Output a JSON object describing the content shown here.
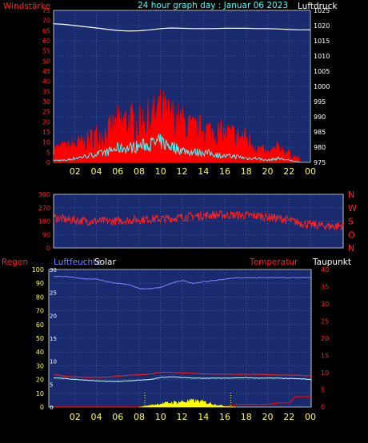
{
  "title": "24 hour graph day : Januar 06 2023",
  "colors": {
    "plot_bg": "#1a2a6e",
    "grid": "#5a6fb8",
    "frame": "#c0c0c0",
    "red_axis": "#ff2020",
    "yellow_axis": "#ffff40",
    "cyan_title": "#40ffff",
    "white_label": "#ffffff",
    "pressure_line": "#ffffff",
    "wind_gust": "#ff0000",
    "wind_avg": "#40ffff",
    "wind_dir": "#ff2020",
    "humidity": "#8080ff",
    "temperature": "#ff2020",
    "dewpoint": "#c0ffff",
    "rain": "#ff0000",
    "solar": "#ffff00"
  },
  "chart_data": [
    {
      "type": "line",
      "ylabel_left": "Windstärke",
      "ylabel_right": "Luftdruck",
      "yticks_left": [
        "0",
        "5",
        "10",
        "15",
        "20",
        "25",
        "30",
        "35",
        "40",
        "45",
        "50",
        "55",
        "60",
        "65",
        "70",
        "75"
      ],
      "yticks_right": [
        "975",
        "980",
        "985",
        "990",
        "995",
        "1000",
        "1005",
        "1010",
        "1015",
        "1020",
        "1025"
      ],
      "ylim_left": [
        0,
        75
      ],
      "ylim_right": [
        975,
        1025
      ],
      "xticks": [
        "02",
        "04",
        "06",
        "08",
        "10",
        "12",
        "14",
        "16",
        "18",
        "20",
        "22",
        "00"
      ],
      "grid": true,
      "series": [
        {
          "name": "Luftdruck",
          "axis": "right",
          "x": [
            0,
            1,
            2,
            3,
            4,
            5,
            6,
            7,
            8,
            9,
            10,
            11,
            12,
            13,
            14,
            15,
            16,
            17,
            18,
            19,
            20,
            21,
            22,
            23,
            24
          ],
          "values": [
            1020.6,
            1020.4,
            1020.0,
            1019.6,
            1019.2,
            1018.8,
            1018.4,
            1018.2,
            1018.3,
            1018.6,
            1019.0,
            1019.2,
            1019.1,
            1019.0,
            1019.0,
            1019.0,
            1019.1,
            1019.1,
            1019.1,
            1019.0,
            1019.0,
            1018.9,
            1018.7,
            1018.6,
            1018.6
          ]
        },
        {
          "name": "Windböen",
          "axis": "left",
          "x": [
            0,
            1,
            2,
            3,
            4,
            5,
            6,
            7,
            8,
            9,
            10,
            11,
            12,
            13,
            14,
            15,
            16,
            17,
            18,
            19,
            20,
            21,
            22,
            23,
            24
          ],
          "values": [
            9,
            10,
            12,
            14,
            18,
            20,
            26,
            28,
            26,
            30,
            34,
            30,
            26,
            22,
            22,
            20,
            19,
            18,
            16,
            10,
            6,
            10,
            6,
            2,
            0
          ]
        },
        {
          "name": "Windmittel",
          "axis": "left",
          "x": [
            0,
            1,
            2,
            3,
            4,
            5,
            6,
            7,
            8,
            9,
            10,
            11,
            12,
            13,
            14,
            15,
            16,
            17,
            18,
            19,
            20,
            21,
            22,
            23,
            24
          ],
          "values": [
            1,
            1,
            2,
            3,
            4,
            5,
            7,
            7,
            8,
            9,
            10,
            8,
            6,
            5,
            5,
            4,
            3,
            3,
            2,
            2,
            1,
            2,
            1,
            0,
            0
          ]
        }
      ]
    },
    {
      "type": "line",
      "ylabel_right": [
        "N",
        "W",
        "S",
        "O",
        "N"
      ],
      "yticks_left": [
        "0",
        "90",
        "180",
        "270",
        "360"
      ],
      "ylim": [
        0,
        360
      ],
      "xticks": [
        "02",
        "04",
        "06",
        "08",
        "10",
        "12",
        "14",
        "16",
        "18",
        "20",
        "22",
        "00"
      ],
      "grid": true,
      "series": [
        {
          "name": "Windrichtung",
          "x": [
            0,
            1,
            2,
            3,
            4,
            5,
            6,
            7,
            8,
            9,
            10,
            11,
            12,
            13,
            14,
            15,
            16,
            17,
            18,
            19,
            20,
            21,
            22,
            23,
            24
          ],
          "values": [
            205,
            190,
            185,
            180,
            180,
            180,
            185,
            190,
            195,
            195,
            200,
            210,
            215,
            220,
            222,
            220,
            218,
            215,
            205,
            195,
            175,
            160,
            150,
            145,
            150
          ]
        }
      ]
    },
    {
      "type": "line",
      "ylabel_left": "Regen",
      "ylabel_humidity": "Luftfeuchte",
      "ylabel_solar": "Solar",
      "ylabel_temp": "Temperatur",
      "ylabel_dew": "Taupunkt",
      "yticks_left": [
        "0",
        "10",
        "20",
        "30",
        "40",
        "50",
        "60",
        "70",
        "80",
        "90",
        "100"
      ],
      "yticks_inner": [
        "0",
        "5",
        "10",
        "15",
        "20",
        "25",
        "30"
      ],
      "yticks_right": [
        "0",
        "5",
        "10",
        "15",
        "20",
        "25",
        "30",
        "35",
        "40"
      ],
      "ylim_left": [
        0,
        100
      ],
      "ylim_right": [
        0,
        40
      ],
      "xticks": [
        "02",
        "04",
        "06",
        "08",
        "10",
        "12",
        "14",
        "16",
        "18",
        "20",
        "22",
        "00"
      ],
      "grid": true,
      "series": [
        {
          "name": "Luftfeuchte",
          "axis": "left",
          "x": [
            0,
            1,
            2,
            3,
            4,
            5,
            6,
            7,
            8,
            9,
            10,
            11,
            12,
            13,
            14,
            15,
            16,
            17,
            18,
            19,
            20,
            21,
            22,
            23,
            24
          ],
          "values": [
            95,
            95,
            94,
            93,
            93,
            91,
            90,
            89,
            86,
            86,
            87,
            90,
            92,
            90,
            91,
            92,
            93,
            94,
            94,
            94,
            94,
            94,
            94,
            94,
            94
          ]
        },
        {
          "name": "Temperatur",
          "axis": "right",
          "x": [
            0,
            1,
            2,
            3,
            4,
            5,
            6,
            7,
            8,
            9,
            10,
            11,
            12,
            13,
            14,
            15,
            16,
            17,
            18,
            19,
            20,
            21,
            22,
            23,
            24
          ],
          "values": [
            9.5,
            9,
            8.8,
            8.6,
            8.6,
            8.7,
            9.0,
            9.2,
            9.4,
            9.6,
            10.1,
            10.1,
            9.9,
            9.8,
            9.6,
            9.6,
            9.6,
            9.5,
            9.5,
            9.5,
            9.4,
            9.3,
            9.3,
            9.2,
            9.0
          ]
        },
        {
          "name": "Taupunkt",
          "axis": "right",
          "x": [
            0,
            1,
            2,
            3,
            4,
            5,
            6,
            7,
            8,
            9,
            10,
            11,
            12,
            13,
            14,
            15,
            16,
            17,
            18,
            19,
            20,
            21,
            22,
            23,
            24
          ],
          "values": [
            8.5,
            8.3,
            8.0,
            7.8,
            7.6,
            7.5,
            7.4,
            7.6,
            7.8,
            8.0,
            8.6,
            8.8,
            8.6,
            8.4,
            8.4,
            8.4,
            8.4,
            8.5,
            8.5,
            8.4,
            8.4,
            8.4,
            8.3,
            8.2,
            8.0
          ]
        },
        {
          "name": "Regen",
          "axis": "right",
          "x": [
            0,
            16,
            17,
            20,
            21,
            22,
            22.5,
            24
          ],
          "values": [
            0,
            0,
            0.8,
            0.8,
            1.2,
            1.2,
            3.0,
            3.0
          ]
        },
        {
          "name": "Solar",
          "axis": "right",
          "x": [
            0,
            8,
            9,
            10,
            11,
            12,
            13,
            14,
            15,
            16,
            17,
            24
          ],
          "values": [
            0,
            0,
            0.5,
            1.0,
            1.3,
            1.6,
            1.8,
            1.5,
            0.8,
            0.2,
            0,
            0
          ]
        }
      ]
    }
  ]
}
